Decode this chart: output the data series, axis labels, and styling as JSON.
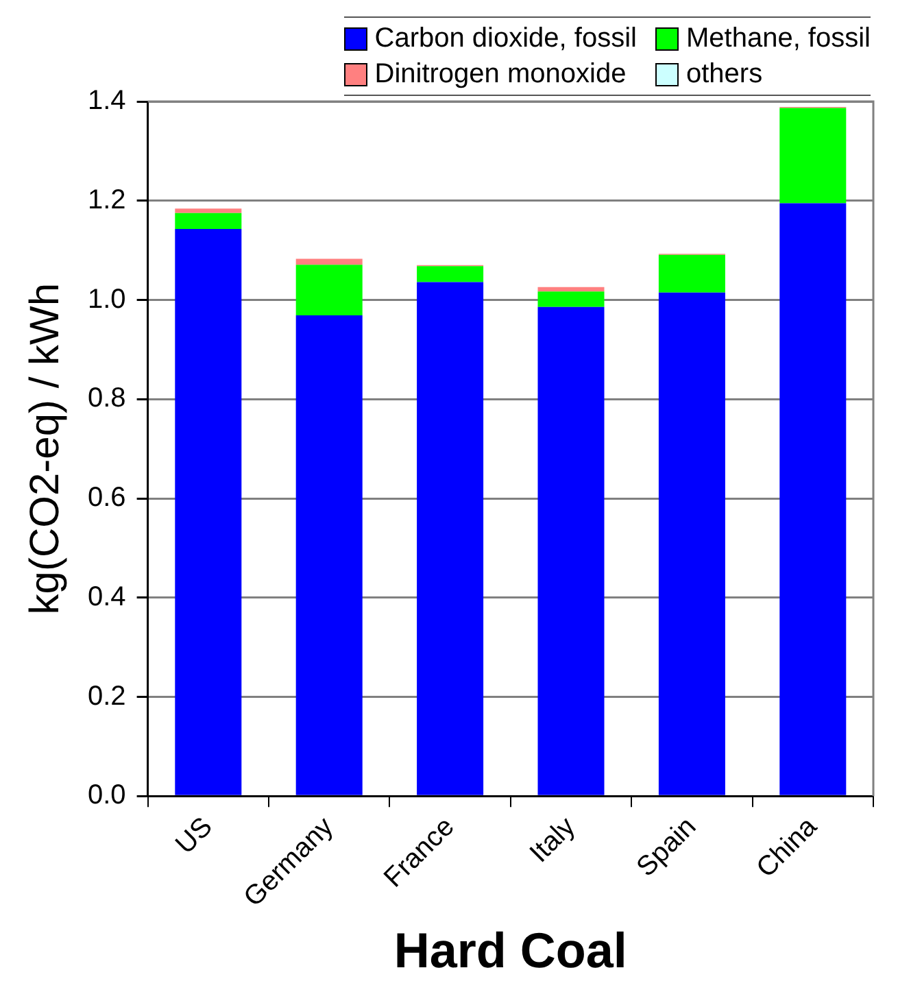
{
  "chart_data": {
    "type": "bar",
    "stacked": true,
    "xlabel": "Hard Coal",
    "ylabel": "kg(CO2-eq) / kWh",
    "categories": [
      "US",
      "Germany",
      "France",
      "Italy",
      "Spain",
      "China"
    ],
    "series": [
      {
        "name": "Carbon dioxide, fossil",
        "color": "#0000ff",
        "values": [
          1.143,
          0.969,
          1.036,
          0.986,
          1.015,
          1.195
        ]
      },
      {
        "name": "Methane, fossil",
        "color": "#00ff00",
        "values": [
          0.032,
          0.102,
          0.032,
          0.031,
          0.076,
          0.192
        ]
      },
      {
        "name": "Dinitrogen monoxide",
        "color": "#ff8080",
        "values": [
          0.009,
          0.012,
          0.002,
          0.009,
          0.002,
          0.002
        ]
      },
      {
        "name": "others",
        "color": "#ccffff",
        "values": [
          null,
          null,
          null,
          null,
          null,
          null
        ]
      }
    ],
    "ylim": [
      0,
      1.4
    ],
    "yticks": [
      {
        "value": 0,
        "label": "0.0"
      },
      {
        "value": 0.2,
        "label": "0.2"
      },
      {
        "value": 0.4,
        "label": "0.4"
      },
      {
        "value": 0.6,
        "label": "0.6"
      },
      {
        "value": 0.8,
        "label": "0.8"
      },
      {
        "value": 1,
        "label": "1.0"
      },
      {
        "value": 1.2,
        "label": "1.2"
      },
      {
        "value": 1.4,
        "label": "1.4"
      }
    ],
    "grid": "y",
    "legend": "top right"
  }
}
